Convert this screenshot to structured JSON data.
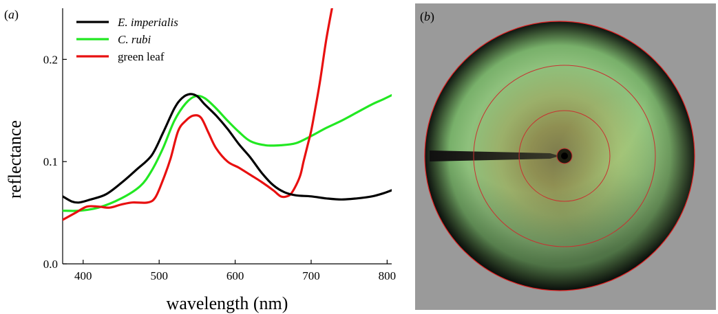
{
  "panel_a": {
    "label_open": "(",
    "label_letter": "a",
    "label_close": ")"
  },
  "panel_b": {
    "label_open": "(",
    "label_letter": "b",
    "label_close": ")"
  },
  "colors": {
    "background_b": "#9a9a9a",
    "rim": "#e02020",
    "ring": "#c83030"
  },
  "chart_data": {
    "type": "line",
    "xlabel": "wavelength (nm)",
    "ylabel": "reflectance",
    "xlim": [
      373,
      806
    ],
    "ylim": [
      0.0,
      0.25
    ],
    "xticks": [
      400,
      500,
      600,
      700,
      800
    ],
    "yticks": [
      0.0,
      0.1,
      0.2
    ],
    "ytick_labels": [
      "0.0",
      "0.1",
      "0.2"
    ],
    "grid": false,
    "legend_position": "top-left",
    "series": [
      {
        "name": "E. imperialis",
        "italic": true,
        "color": "#000000",
        "x": [
          373,
          385,
          395,
          410,
          430,
          450,
          470,
          490,
          505,
          520,
          530,
          540,
          550,
          560,
          575,
          590,
          605,
          620,
          635,
          650,
          665,
          680,
          700,
          720,
          740,
          760,
          780,
          795,
          806
        ],
        "y": [
          0.066,
          0.061,
          0.06,
          0.063,
          0.068,
          0.079,
          0.092,
          0.106,
          0.128,
          0.152,
          0.162,
          0.166,
          0.164,
          0.156,
          0.145,
          0.132,
          0.117,
          0.104,
          0.089,
          0.077,
          0.07,
          0.067,
          0.066,
          0.064,
          0.063,
          0.064,
          0.066,
          0.069,
          0.072
        ]
      },
      {
        "name": "C. rubi",
        "italic": true,
        "color": "#22e822",
        "x": [
          373,
          395,
          420,
          450,
          475,
          490,
          505,
          520,
          535,
          548,
          560,
          575,
          590,
          605,
          620,
          640,
          660,
          680,
          700,
          720,
          740,
          760,
          780,
          795,
          806
        ],
        "y": [
          0.052,
          0.052,
          0.055,
          0.064,
          0.076,
          0.091,
          0.113,
          0.14,
          0.157,
          0.164,
          0.162,
          0.152,
          0.14,
          0.129,
          0.12,
          0.116,
          0.116,
          0.118,
          0.125,
          0.133,
          0.14,
          0.148,
          0.156,
          0.161,
          0.165
        ]
      },
      {
        "name": "green leaf",
        "italic": false,
        "color": "#e81010",
        "x": [
          373,
          390,
          405,
          420,
          435,
          450,
          465,
          485,
          495,
          505,
          515,
          525,
          535,
          545,
          555,
          565,
          575,
          590,
          605,
          620,
          635,
          650,
          660,
          668,
          675,
          685,
          690,
          695,
          700,
          705,
          712,
          720,
          730
        ],
        "y": [
          0.043,
          0.05,
          0.056,
          0.056,
          0.055,
          0.058,
          0.06,
          0.06,
          0.065,
          0.082,
          0.103,
          0.13,
          0.14,
          0.145,
          0.143,
          0.128,
          0.113,
          0.1,
          0.094,
          0.087,
          0.08,
          0.072,
          0.066,
          0.066,
          0.07,
          0.085,
          0.1,
          0.115,
          0.13,
          0.15,
          0.18,
          0.22,
          0.26
        ]
      }
    ]
  }
}
